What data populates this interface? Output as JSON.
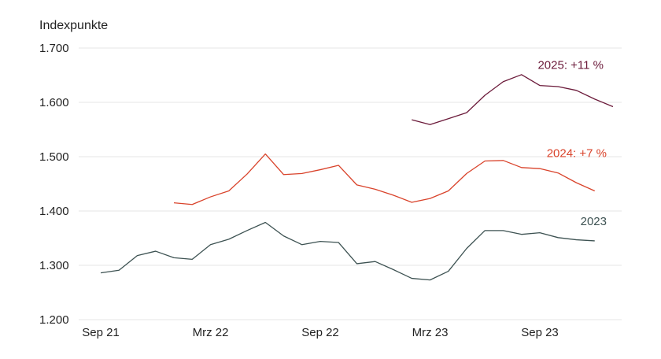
{
  "chart_data": {
    "type": "line",
    "ylabel": "Indexpunkte",
    "ylim": [
      1200,
      1700
    ],
    "y_ticks": [
      1200,
      1300,
      1400,
      1500,
      1600,
      1700
    ],
    "y_tick_labels": [
      "1.200",
      "1.300",
      "1.400",
      "1.500",
      "1.600",
      "1.700"
    ],
    "x_ticks": [
      {
        "index": 0,
        "label": "Sep 21"
      },
      {
        "index": 6,
        "label": "Mrz 22"
      },
      {
        "index": 12,
        "label": "Sep 22"
      },
      {
        "index": 18,
        "label": "Mrz 23"
      },
      {
        "index": 24,
        "label": "Sep 23"
      }
    ],
    "x_count": 28,
    "grid": true,
    "series": [
      {
        "name": "2023",
        "label": "2023",
        "color": "#3d5252",
        "start_index": 0,
        "values": [
          1286,
          1291,
          1318,
          1326,
          1314,
          1311,
          1338,
          1348,
          1364,
          1379,
          1354,
          1338,
          1344,
          1342,
          1303,
          1307,
          1292,
          1276,
          1273,
          1289,
          1331,
          1364,
          1364,
          1357,
          1360,
          1351,
          1347,
          1345
        ]
      },
      {
        "name": "2024",
        "label": "2024: +7 %",
        "color": "#d9432b",
        "start_index": 4,
        "values": [
          1415,
          1412,
          1426,
          1437,
          1468,
          1505,
          1467,
          1469,
          1476,
          1484,
          1448,
          1440,
          1429,
          1416,
          1423,
          1437,
          1469,
          1492,
          1493,
          1480,
          1478,
          1470,
          1452,
          1437
        ]
      },
      {
        "name": "2025",
        "label": "2025: +11 %",
        "color": "#6b1a3a",
        "start_index": 17,
        "values": [
          1568,
          1559,
          1570,
          1581,
          1613,
          1638,
          1651,
          1631,
          1629,
          1622,
          1606,
          1592
        ]
      }
    ]
  }
}
